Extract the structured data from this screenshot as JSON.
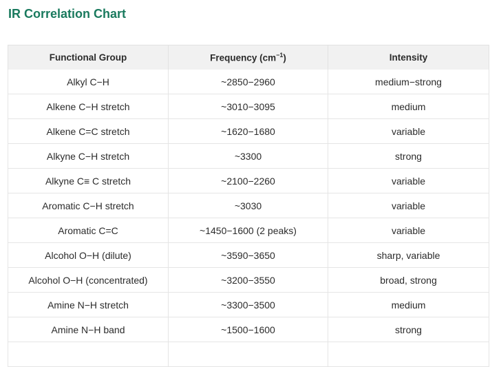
{
  "title": "IR Correlation Chart",
  "colors": {
    "title": "#1a7a5e",
    "header_bg": "#f1f1f1",
    "border": "#e5e5e5"
  },
  "table": {
    "headers": {
      "group": "Functional Group",
      "frequency_prefix": "Frequency (cm",
      "frequency_sup": "−1",
      "frequency_suffix": ")",
      "intensity": "Intensity"
    },
    "rows": [
      {
        "group": "Alkyl C−H",
        "frequency": "~2850−2960",
        "intensity": "medium−strong"
      },
      {
        "group": "Alkene C−H stretch",
        "frequency": "~3010−3095",
        "intensity": "medium"
      },
      {
        "group": "Alkene C=C stretch",
        "frequency": "~1620−1680",
        "intensity": "variable"
      },
      {
        "group": "Alkyne C−H stretch",
        "frequency": "~3300",
        "intensity": "strong"
      },
      {
        "group": "Alkyne C≡ C stretch",
        "frequency": "~2100−2260",
        "intensity": "variable"
      },
      {
        "group": "Aromatic C−H stretch",
        "frequency": "~3030",
        "intensity": "variable"
      },
      {
        "group": "Aromatic C=C",
        "frequency": "~1450−1600 (2 peaks)",
        "intensity": "variable"
      },
      {
        "group": "Alcohol O−H (dilute)",
        "frequency": "~3590−3650",
        "intensity": "sharp, variable"
      },
      {
        "group": "Alcohol O−H (concentrated)",
        "frequency": "~3200−3550",
        "intensity": "broad, strong"
      },
      {
        "group": "Amine N−H stretch",
        "frequency": "~3300−3500",
        "intensity": "medium"
      },
      {
        "group": "Amine N−H band",
        "frequency": "~1500−1600",
        "intensity": "strong"
      }
    ]
  }
}
